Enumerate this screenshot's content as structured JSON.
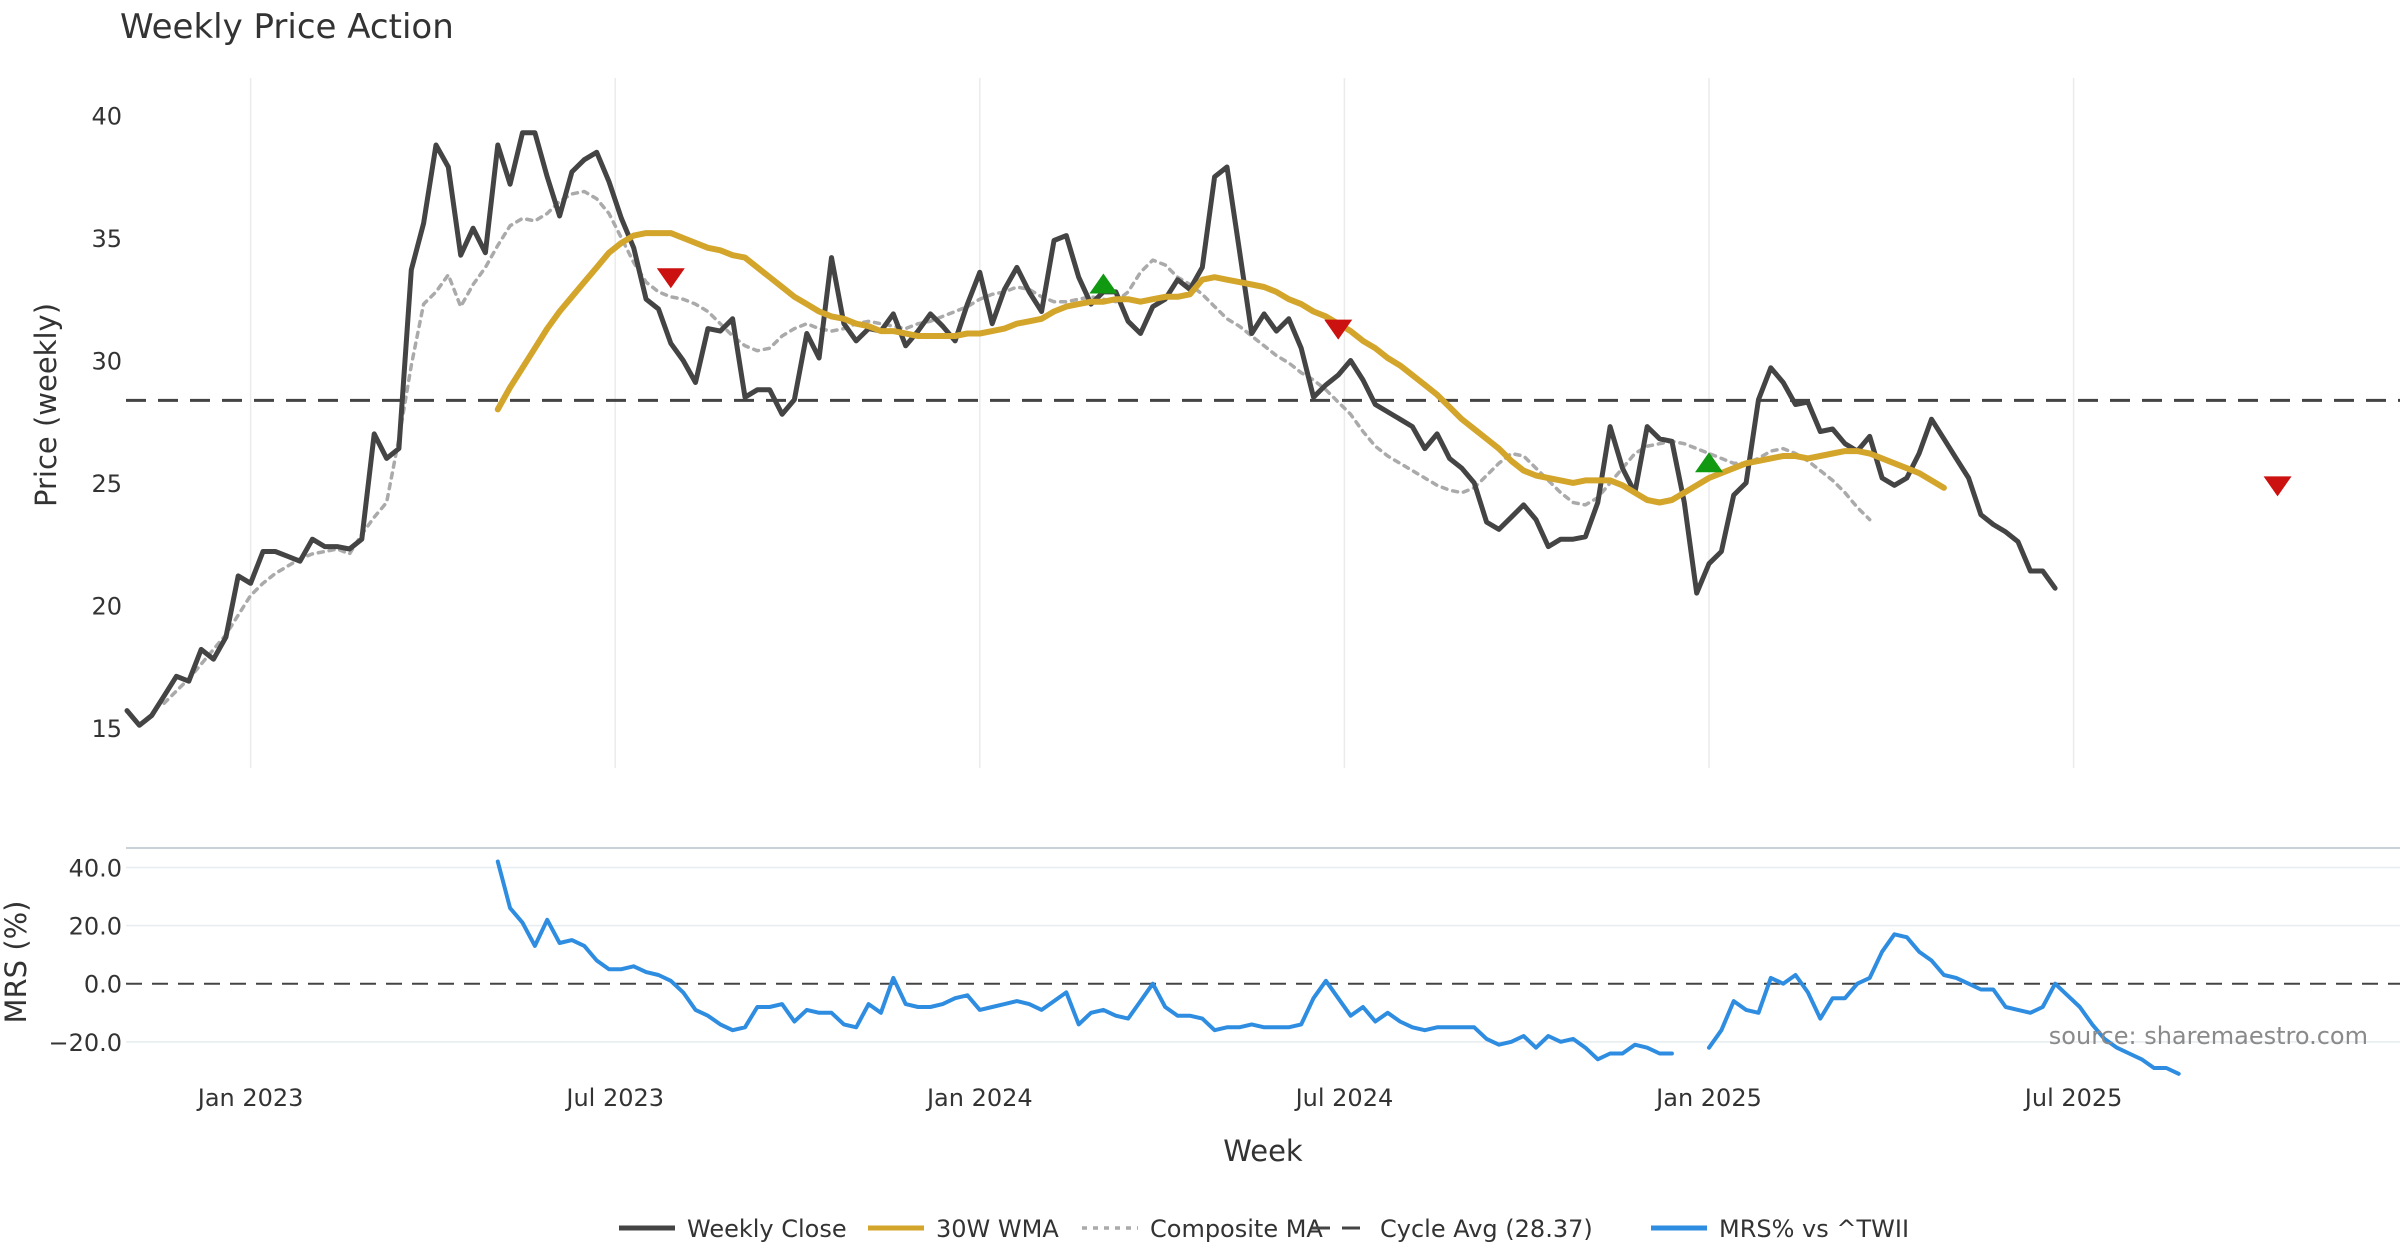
{
  "title": "Weekly Price Action",
  "source_note": "source: sharemaestro.com",
  "legend": [
    {
      "label": "Weekly Close",
      "color": "#444444",
      "style": "solid"
    },
    {
      "label": "30W WMA",
      "color": "#d4a52b",
      "style": "solid"
    },
    {
      "label": "Composite MA",
      "color": "#aaaaaa",
      "style": "dotted"
    },
    {
      "label": "Cycle Avg (28.37)",
      "color": "#444444",
      "style": "dashed"
    },
    {
      "label": "MRS% vs ^TWII",
      "color": "#2e8de0",
      "style": "solid"
    }
  ],
  "chart_data": [
    {
      "type": "line",
      "title": "Weekly Price Action",
      "ylabel": "Price (weekly)",
      "ylim": [
        14.5,
        40.8
      ],
      "yticks": [
        15,
        20,
        25,
        30,
        35,
        40
      ],
      "x_unit": "week index (0 = first weekly bar, Jan 2023 ≈ 10, one label every 26 weeks)",
      "xlim": [
        0,
        178
      ],
      "x_tick_labels": [
        {
          "label": "Jan 2023",
          "x": 10
        },
        {
          "label": "Jul 2023",
          "x": 39.5
        },
        {
          "label": "Jan 2024",
          "x": 69
        },
        {
          "label": "Jul 2024",
          "x": 98.5
        },
        {
          "label": "Jan 2025",
          "x": 128
        },
        {
          "label": "Jul 2025",
          "x": 157.5
        }
      ],
      "cycle_avg": 28.37,
      "series": [
        {
          "name": "Weekly Close",
          "x0": 0,
          "values": [
            15.7,
            15.1,
            15.5,
            16.3,
            17.1,
            16.9,
            18.2,
            17.8,
            18.7,
            21.2,
            20.9,
            22.2,
            22.2,
            22.0,
            21.8,
            22.7,
            22.4,
            22.4,
            22.3,
            22.7,
            27.0,
            26.0,
            26.4,
            33.7,
            35.6,
            38.8,
            37.9,
            34.3,
            35.4,
            34.4,
            38.8,
            37.2,
            39.3,
            39.3,
            37.5,
            35.9,
            37.7,
            38.2,
            38.5,
            37.3,
            35.8,
            34.6,
            32.5,
            32.1,
            30.7,
            30.0,
            29.1,
            31.3,
            31.2,
            31.7,
            28.5,
            28.8,
            28.8,
            27.8,
            28.4,
            31.1,
            30.1,
            34.2,
            31.5,
            30.8,
            31.3,
            31.2,
            31.9,
            30.6,
            31.2,
            31.9,
            31.4,
            30.8,
            32.3,
            33.6,
            31.5,
            32.9,
            33.8,
            32.8,
            32.0,
            34.9,
            35.1,
            33.4,
            32.3,
            32.8,
            32.8,
            31.6,
            31.1,
            32.2,
            32.5,
            33.3,
            32.9,
            33.8,
            37.5,
            37.9,
            34.5,
            31.1,
            31.9,
            31.2,
            31.7,
            30.5,
            28.5,
            29.0,
            29.4,
            30.0,
            29.2,
            28.2,
            27.9,
            27.6,
            27.3,
            26.4,
            27.0,
            26.0,
            25.6,
            25.0,
            23.4,
            23.1,
            23.6,
            24.1,
            23.5,
            22.4,
            22.7,
            22.7,
            22.8,
            24.2,
            27.3,
            25.6,
            24.6,
            27.3,
            26.8,
            26.7,
            24.2,
            20.5,
            21.7,
            22.2,
            24.5,
            25.0,
            28.4,
            29.7,
            29.1,
            28.2,
            28.3,
            27.1,
            27.2,
            26.6,
            26.3,
            26.9,
            25.2,
            24.9,
            25.2,
            26.2,
            27.6,
            26.8,
            26.0,
            25.2,
            23.7,
            23.3,
            23.0,
            22.6,
            21.4,
            21.4,
            20.7
          ]
        },
        {
          "name": "30W WMA",
          "x0": 30,
          "values": [
            28.0,
            28.9,
            29.7,
            30.5,
            31.3,
            32.0,
            32.6,
            33.2,
            33.8,
            34.4,
            34.8,
            35.1,
            35.2,
            35.2,
            35.2,
            35.0,
            34.8,
            34.6,
            34.5,
            34.3,
            34.2,
            33.8,
            33.4,
            33.0,
            32.6,
            32.3,
            32.0,
            31.8,
            31.7,
            31.5,
            31.4,
            31.2,
            31.2,
            31.1,
            31.0,
            31.0,
            31.0,
            31.0,
            31.1,
            31.1,
            31.2,
            31.3,
            31.5,
            31.6,
            31.7,
            32.0,
            32.2,
            32.3,
            32.4,
            32.4,
            32.5,
            32.5,
            32.4,
            32.5,
            32.6,
            32.6,
            32.7,
            33.3,
            33.4,
            33.3,
            33.2,
            33.1,
            33.0,
            32.8,
            32.5,
            32.3,
            32.0,
            31.8,
            31.5,
            31.2,
            30.8,
            30.5,
            30.1,
            29.8,
            29.4,
            29.0,
            28.6,
            28.1,
            27.6,
            27.2,
            26.8,
            26.4,
            25.9,
            25.5,
            25.3,
            25.2,
            25.1,
            25.0,
            25.1,
            25.1,
            25.1,
            24.9,
            24.6,
            24.3,
            24.2,
            24.3,
            24.6,
            24.9,
            25.2,
            25.4,
            25.6,
            25.8,
            25.9,
            26.0,
            26.1,
            26.1,
            26.0,
            26.1,
            26.2,
            26.3,
            26.3,
            26.2,
            26.0,
            25.8,
            25.6,
            25.4,
            25.1,
            24.8
          ]
        },
        {
          "name": "Composite MA",
          "x0": 3,
          "values": [
            16.0,
            16.5,
            17.0,
            17.6,
            18.2,
            18.8,
            19.6,
            20.4,
            20.9,
            21.3,
            21.6,
            21.9,
            22.1,
            22.2,
            22.3,
            22.1,
            22.9,
            23.6,
            24.2,
            26.8,
            29.8,
            32.3,
            32.8,
            33.5,
            32.2,
            33.1,
            33.8,
            34.7,
            35.5,
            35.8,
            35.7,
            36.0,
            36.5,
            36.8,
            36.9,
            36.6,
            36.0,
            35.0,
            34.0,
            33.2,
            32.8,
            32.6,
            32.5,
            32.3,
            32.0,
            31.5,
            31.0,
            30.6,
            30.4,
            30.5,
            31.0,
            31.3,
            31.5,
            31.3,
            31.2,
            31.3,
            31.5,
            31.6,
            31.5,
            31.4,
            31.3,
            31.5,
            31.6,
            31.8,
            32.0,
            32.2,
            32.5,
            32.7,
            32.8,
            33.0,
            32.9,
            32.6,
            32.4,
            32.4,
            32.5,
            32.6,
            32.5,
            32.4,
            32.8,
            33.6,
            34.1,
            33.9,
            33.4,
            33.1,
            32.7,
            32.2,
            31.7,
            31.4,
            31.0,
            30.6,
            30.2,
            29.9,
            29.5,
            29.2,
            28.8,
            28.3,
            27.8,
            27.1,
            26.5,
            26.1,
            25.8,
            25.5,
            25.2,
            24.9,
            24.7,
            24.6,
            24.8,
            25.3,
            25.8,
            26.2,
            26.1,
            25.6,
            25.1,
            24.6,
            24.2,
            24.1,
            24.4,
            25.0,
            25.6,
            26.2,
            26.5,
            26.6,
            26.7,
            26.6,
            26.4,
            26.2,
            26.0,
            25.8,
            25.8,
            26.0,
            26.3,
            26.4,
            26.2,
            25.9,
            25.5,
            25.1,
            24.6,
            24.0,
            23.5
          ]
        }
      ],
      "markers": [
        {
          "type": "sell",
          "x": 44,
          "y": 33.4,
          "color": "#cc1111"
        },
        {
          "type": "buy",
          "x": 79,
          "y": 33.1,
          "color": "#119911"
        },
        {
          "type": "sell",
          "x": 98,
          "y": 31.3,
          "color": "#cc1111"
        },
        {
          "type": "buy",
          "x": 128,
          "y": 25.8,
          "color": "#119911"
        },
        {
          "type": "sell",
          "x": 174,
          "y": 24.9,
          "color": "#cc1111"
        }
      ]
    },
    {
      "type": "line",
      "ylabel": "MRS (%)",
      "xlabel": "Week",
      "ylim": [
        -29,
        46
      ],
      "yticks": [
        40,
        20,
        0,
        -20
      ],
      "ytick_labels": [
        "40.0",
        "20.0",
        "0.0",
        "−20.0"
      ],
      "zero_line": 0,
      "series": [
        {
          "name": "MRS% vs ^TWII",
          "x0": 30,
          "values": [
            42,
            26,
            21,
            13,
            22,
            14,
            15,
            13,
            8,
            5,
            5,
            6,
            4,
            3,
            1,
            -3,
            -9,
            -11,
            -14,
            -16,
            -15,
            -8,
            -8,
            -7,
            -13,
            -9,
            -10,
            -10,
            -14,
            -15,
            -7,
            -10,
            2,
            -7,
            -8,
            -8,
            -7,
            -5,
            -4,
            -9,
            -8,
            -7,
            -6,
            -7,
            -9,
            -6,
            -3,
            -14,
            -10,
            -9,
            -11,
            -12,
            -6,
            0,
            -8,
            -11,
            -11,
            -12,
            -16,
            -15,
            -15,
            -14,
            -15,
            -15,
            -15,
            -14,
            -5,
            1,
            -5,
            -11,
            -8,
            -13,
            -10,
            -13,
            -15,
            -16,
            -15,
            -15,
            -15,
            -15,
            -19,
            -21,
            -20,
            -18,
            -22,
            -18,
            -20,
            -19,
            -22,
            -26,
            -24,
            -24,
            -21,
            -22,
            -24,
            -24,
            null,
            null,
            -22,
            -16,
            -6,
            -9,
            -10,
            2,
            0,
            3,
            -3,
            -12,
            -5,
            -5,
            0,
            2,
            11,
            17,
            16,
            11,
            8,
            3,
            2,
            0,
            -2,
            -2,
            -8,
            -9,
            -10,
            -8,
            0,
            -4,
            -8,
            -14,
            -19,
            -22,
            -24,
            -26,
            -29,
            -29,
            -31
          ]
        }
      ]
    }
  ]
}
